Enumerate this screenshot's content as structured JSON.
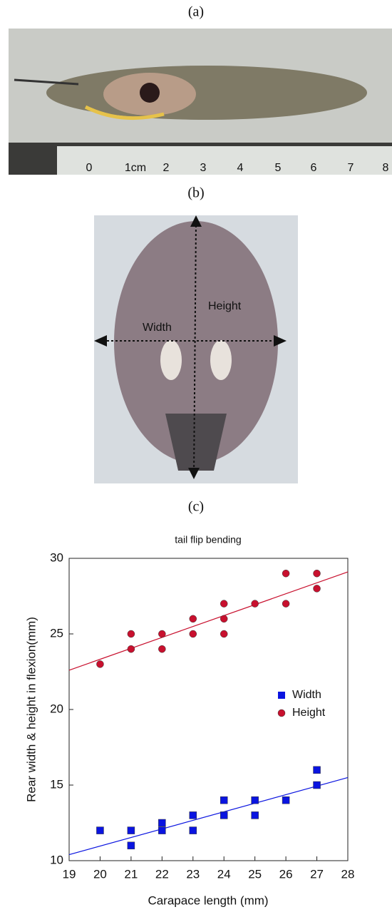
{
  "panels": {
    "a": "(a)",
    "b": "(b)",
    "c": "(c)"
  },
  "photo_a": {
    "ruler_labels": [
      "0",
      "1cm",
      "2",
      "3",
      "4",
      "5",
      "6",
      "7",
      "8"
    ]
  },
  "photo_b": {
    "annotations": [
      "Height",
      "Width"
    ]
  },
  "chart_data": {
    "type": "scatter",
    "title": "tail flip bending",
    "x_label": "Carapace length (mm)",
    "y_label": "Rear width & height in flexion(mm)",
    "xlim": [
      19,
      28
    ],
    "ylim": [
      10,
      30
    ],
    "xticks": [
      19,
      20,
      21,
      22,
      23,
      24,
      25,
      26,
      27,
      28
    ],
    "yticks": [
      10,
      15,
      20,
      25,
      30
    ],
    "legend": "center right",
    "series": [
      {
        "name": "Width",
        "color": "#0a14e0",
        "marker": "square",
        "x": [
          20,
          21,
          21,
          22,
          22,
          23,
          23,
          24,
          24,
          25,
          25,
          26,
          27,
          27
        ],
        "values": [
          12,
          12,
          11,
          12.5,
          12,
          13,
          12,
          14,
          13,
          14,
          13,
          14,
          16,
          15
        ],
        "fit": {
          "x": [
            19,
            28
          ],
          "values": [
            10.4,
            15.5
          ]
        }
      },
      {
        "name": "Height",
        "color": "#c8102e",
        "marker": "circle",
        "x": [
          20,
          21,
          21,
          22,
          22,
          23,
          23,
          24,
          24,
          24,
          25,
          26,
          26,
          27,
          27
        ],
        "values": [
          23,
          25,
          24,
          25,
          24,
          26,
          25,
          27,
          26,
          25,
          27,
          29,
          27,
          29,
          28
        ],
        "fit": {
          "x": [
            19,
            28
          ],
          "values": [
            22.6,
            29.1
          ]
        }
      }
    ]
  }
}
